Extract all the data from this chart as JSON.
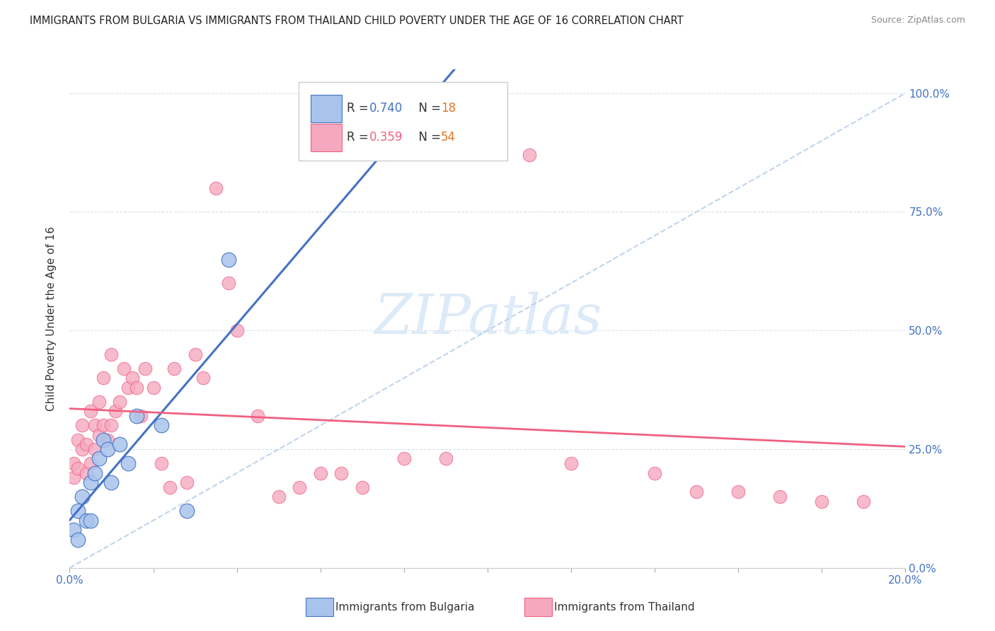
{
  "title": "IMMIGRANTS FROM BULGARIA VS IMMIGRANTS FROM THAILAND CHILD POVERTY UNDER THE AGE OF 16 CORRELATION CHART",
  "source": "Source: ZipAtlas.com",
  "ylabel": "Child Poverty Under the Age of 16",
  "xlim": [
    0.0,
    0.2
  ],
  "ylim": [
    0.0,
    1.05
  ],
  "right_yticks": [
    0.0,
    0.25,
    0.5,
    0.75,
    1.0
  ],
  "right_yticklabels": [
    "0.0%",
    "25.0%",
    "50.0%",
    "75.0%",
    "100.0%"
  ],
  "xticks": [
    0.0,
    0.02,
    0.04,
    0.06,
    0.08,
    0.1,
    0.12,
    0.14,
    0.16,
    0.18,
    0.2
  ],
  "xticklabels": [
    "0.0%",
    "",
    "",
    "",
    "",
    "",
    "",
    "",
    "",
    "",
    "20.0%"
  ],
  "bulgaria_R": 0.74,
  "bulgaria_N": 18,
  "thailand_R": 0.359,
  "thailand_N": 54,
  "bulgaria_color": "#a8c4ed",
  "thailand_color": "#f5a8c0",
  "bulgaria_line_color": "#4472c4",
  "thailand_line_color": "#f06080",
  "diagonal_color": "#c0d4ec",
  "watermark": "ZIPatlas",
  "watermark_color": "#ddeaf8",
  "legend_R_color_bulgaria": "#4472c4",
  "legend_R_color_thailand": "#f06080",
  "legend_N_color": "#e07828",
  "bulgaria_x": [
    0.001,
    0.002,
    0.002,
    0.003,
    0.004,
    0.005,
    0.005,
    0.006,
    0.007,
    0.008,
    0.009,
    0.01,
    0.012,
    0.014,
    0.016,
    0.022,
    0.028,
    0.038
  ],
  "bulgaria_y": [
    0.08,
    0.06,
    0.12,
    0.15,
    0.1,
    0.18,
    0.1,
    0.2,
    0.23,
    0.27,
    0.25,
    0.18,
    0.26,
    0.22,
    0.32,
    0.3,
    0.12,
    0.65
  ],
  "thailand_x": [
    0.001,
    0.001,
    0.002,
    0.002,
    0.003,
    0.003,
    0.004,
    0.004,
    0.005,
    0.005,
    0.006,
    0.006,
    0.007,
    0.007,
    0.008,
    0.008,
    0.009,
    0.01,
    0.01,
    0.011,
    0.012,
    0.013,
    0.014,
    0.015,
    0.016,
    0.017,
    0.018,
    0.02,
    0.022,
    0.024,
    0.025,
    0.028,
    0.03,
    0.032,
    0.035,
    0.038,
    0.04,
    0.045,
    0.05,
    0.055,
    0.06,
    0.065,
    0.07,
    0.08,
    0.09,
    0.1,
    0.11,
    0.12,
    0.14,
    0.15,
    0.16,
    0.17,
    0.18,
    0.19
  ],
  "thailand_y": [
    0.19,
    0.22,
    0.21,
    0.27,
    0.25,
    0.3,
    0.2,
    0.26,
    0.22,
    0.33,
    0.25,
    0.3,
    0.28,
    0.35,
    0.3,
    0.4,
    0.27,
    0.3,
    0.45,
    0.33,
    0.35,
    0.42,
    0.38,
    0.4,
    0.38,
    0.32,
    0.42,
    0.38,
    0.22,
    0.17,
    0.42,
    0.18,
    0.45,
    0.4,
    0.8,
    0.6,
    0.5,
    0.32,
    0.15,
    0.17,
    0.2,
    0.2,
    0.17,
    0.23,
    0.23,
    1.0,
    0.87,
    0.22,
    0.2,
    0.16,
    0.16,
    0.15,
    0.14,
    0.14
  ]
}
